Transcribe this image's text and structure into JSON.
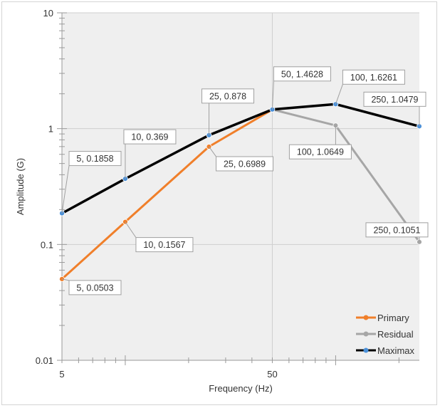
{
  "chart_data": {
    "type": "line",
    "xlabel": "Frequency (Hz)",
    "ylabel": "Amplitude (G)",
    "x_scale": "log",
    "y_scale": "log",
    "xlim": [
      5,
      250
    ],
    "ylim": [
      0.01,
      10
    ],
    "x_ticks": [
      {
        "value": 5,
        "label": "5"
      },
      {
        "value": 50,
        "label": "50"
      }
    ],
    "y_ticks": [
      {
        "value": 10,
        "label": "10"
      },
      {
        "value": 1,
        "label": "1"
      },
      {
        "value": 0.1,
        "label": "0.1"
      },
      {
        "value": 0.01,
        "label": "0.01"
      }
    ],
    "grid": true,
    "legend_position": "bottom-right",
    "series": [
      {
        "name": "Primary",
        "color": "#f07f2a",
        "marker_color": "#f07f2a",
        "points": [
          {
            "x": 5,
            "y": 0.0503,
            "label": "5, 0.0503"
          },
          {
            "x": 10,
            "y": 0.1567,
            "label": "10, 0.1567"
          },
          {
            "x": 25,
            "y": 0.6989,
            "label": "25, 0.6989"
          },
          {
            "x": 50,
            "y": 1.4628,
            "label": ""
          }
        ]
      },
      {
        "name": "Residual",
        "color": "#a6a6a6",
        "marker_color": "#a6a6a6",
        "points": [
          {
            "x": 50,
            "y": 1.4628,
            "label": ""
          },
          {
            "x": 100,
            "y": 1.0649,
            "label": "100, 1.0649"
          },
          {
            "x": 250,
            "y": 0.1051,
            "label": "250, 0.1051"
          }
        ]
      },
      {
        "name": "Maximax",
        "color": "#000000",
        "marker_color": "#4a90d9",
        "points": [
          {
            "x": 5,
            "y": 0.1858,
            "label": "5, 0.1858"
          },
          {
            "x": 10,
            "y": 0.369,
            "label": "10, 0.369"
          },
          {
            "x": 25,
            "y": 0.878,
            "label": "25, 0.878"
          },
          {
            "x": 50,
            "y": 1.4628,
            "label": "50, 1.4628"
          },
          {
            "x": 100,
            "y": 1.6261,
            "label": "100, 1.6261"
          },
          {
            "x": 250,
            "y": 1.0479,
            "label": "250, 1.0479"
          }
        ]
      }
    ]
  }
}
